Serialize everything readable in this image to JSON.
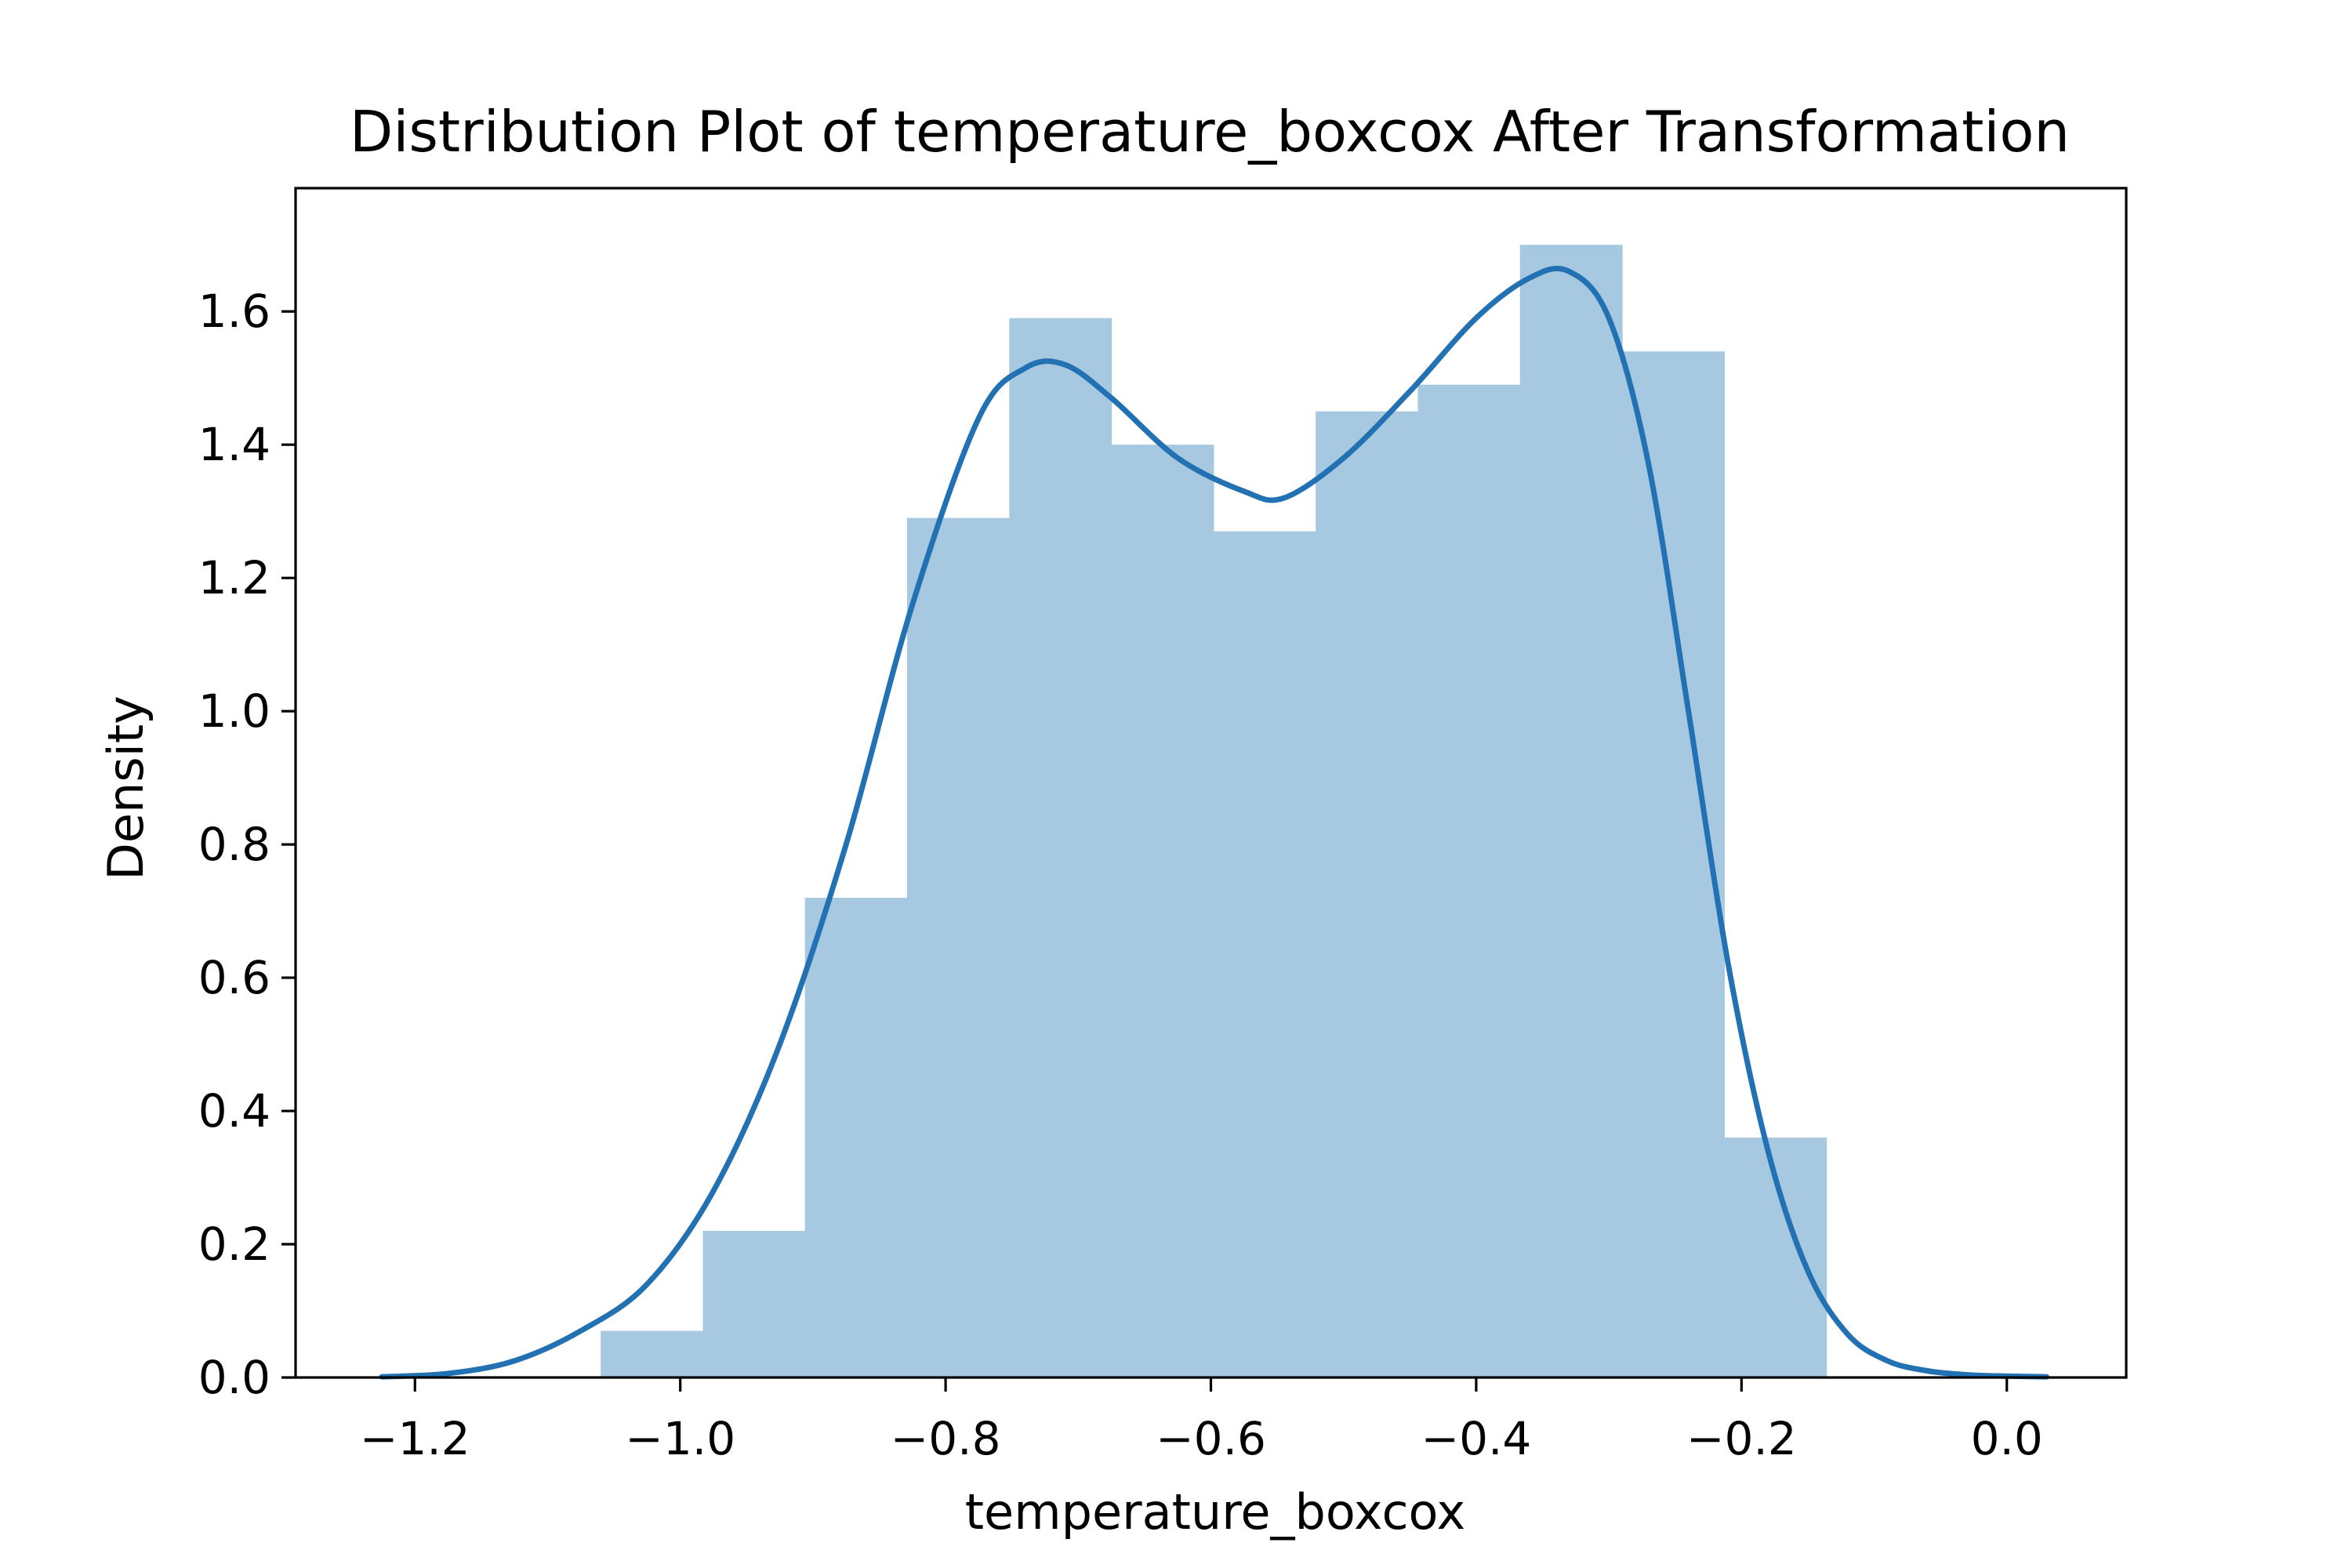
{
  "chart_data": {
    "type": "bar",
    "title": "Distribution Plot of temperature_boxcox After Transformation",
    "xlabel": "temperature_boxcox",
    "ylabel": "Density",
    "xlim": [
      -1.29,
      0.09
    ],
    "ylim": [
      0,
      1.785
    ],
    "xticks": [
      -1.2,
      -1.0,
      -0.8,
      -0.6,
      -0.4,
      -0.2,
      0.0
    ],
    "xtick_labels": [
      "−1.2",
      "−1.0",
      "−0.8",
      "−0.6",
      "−0.4",
      "−0.2",
      "0.0"
    ],
    "yticks": [
      0.0,
      0.2,
      0.4,
      0.6,
      0.8,
      1.0,
      1.2,
      1.4,
      1.6
    ],
    "ytick_labels": [
      "0.0",
      "0.2",
      "0.4",
      "0.6",
      "0.8",
      "1.0",
      "1.2",
      "1.4",
      "1.6"
    ],
    "grid": false,
    "histogram": {
      "bin_edges": [
        -1.06,
        -0.983,
        -0.906,
        -0.829,
        -0.752,
        -0.675,
        -0.598,
        -0.521,
        -0.444,
        -0.367,
        -0.29,
        -0.213,
        -0.136
      ],
      "values": [
        0.07,
        0.22,
        0.72,
        1.29,
        1.59,
        1.4,
        1.27,
        1.45,
        1.49,
        1.7,
        1.54,
        0.36
      ],
      "color": "#a6c8e0"
    },
    "kde": {
      "color": "#2271b2",
      "x": [
        -1.225,
        -1.175,
        -1.125,
        -1.075,
        -1.025,
        -0.975,
        -0.925,
        -0.875,
        -0.825,
        -0.775,
        -0.74,
        -0.71,
        -0.675,
        -0.625,
        -0.575,
        -0.545,
        -0.5,
        -0.45,
        -0.4,
        -0.36,
        -0.33,
        -0.3,
        -0.27,
        -0.24,
        -0.21,
        -0.18,
        -0.15,
        -0.12,
        -0.09,
        -0.06,
        -0.03,
        0.0,
        0.03
      ],
      "y": [
        0.001,
        0.006,
        0.025,
        0.07,
        0.14,
        0.28,
        0.5,
        0.8,
        1.16,
        1.44,
        1.515,
        1.52,
        1.47,
        1.38,
        1.33,
        1.32,
        1.38,
        1.48,
        1.59,
        1.65,
        1.66,
        1.59,
        1.37,
        1.0,
        0.62,
        0.34,
        0.16,
        0.065,
        0.025,
        0.01,
        0.004,
        0.002,
        0.001
      ]
    }
  }
}
